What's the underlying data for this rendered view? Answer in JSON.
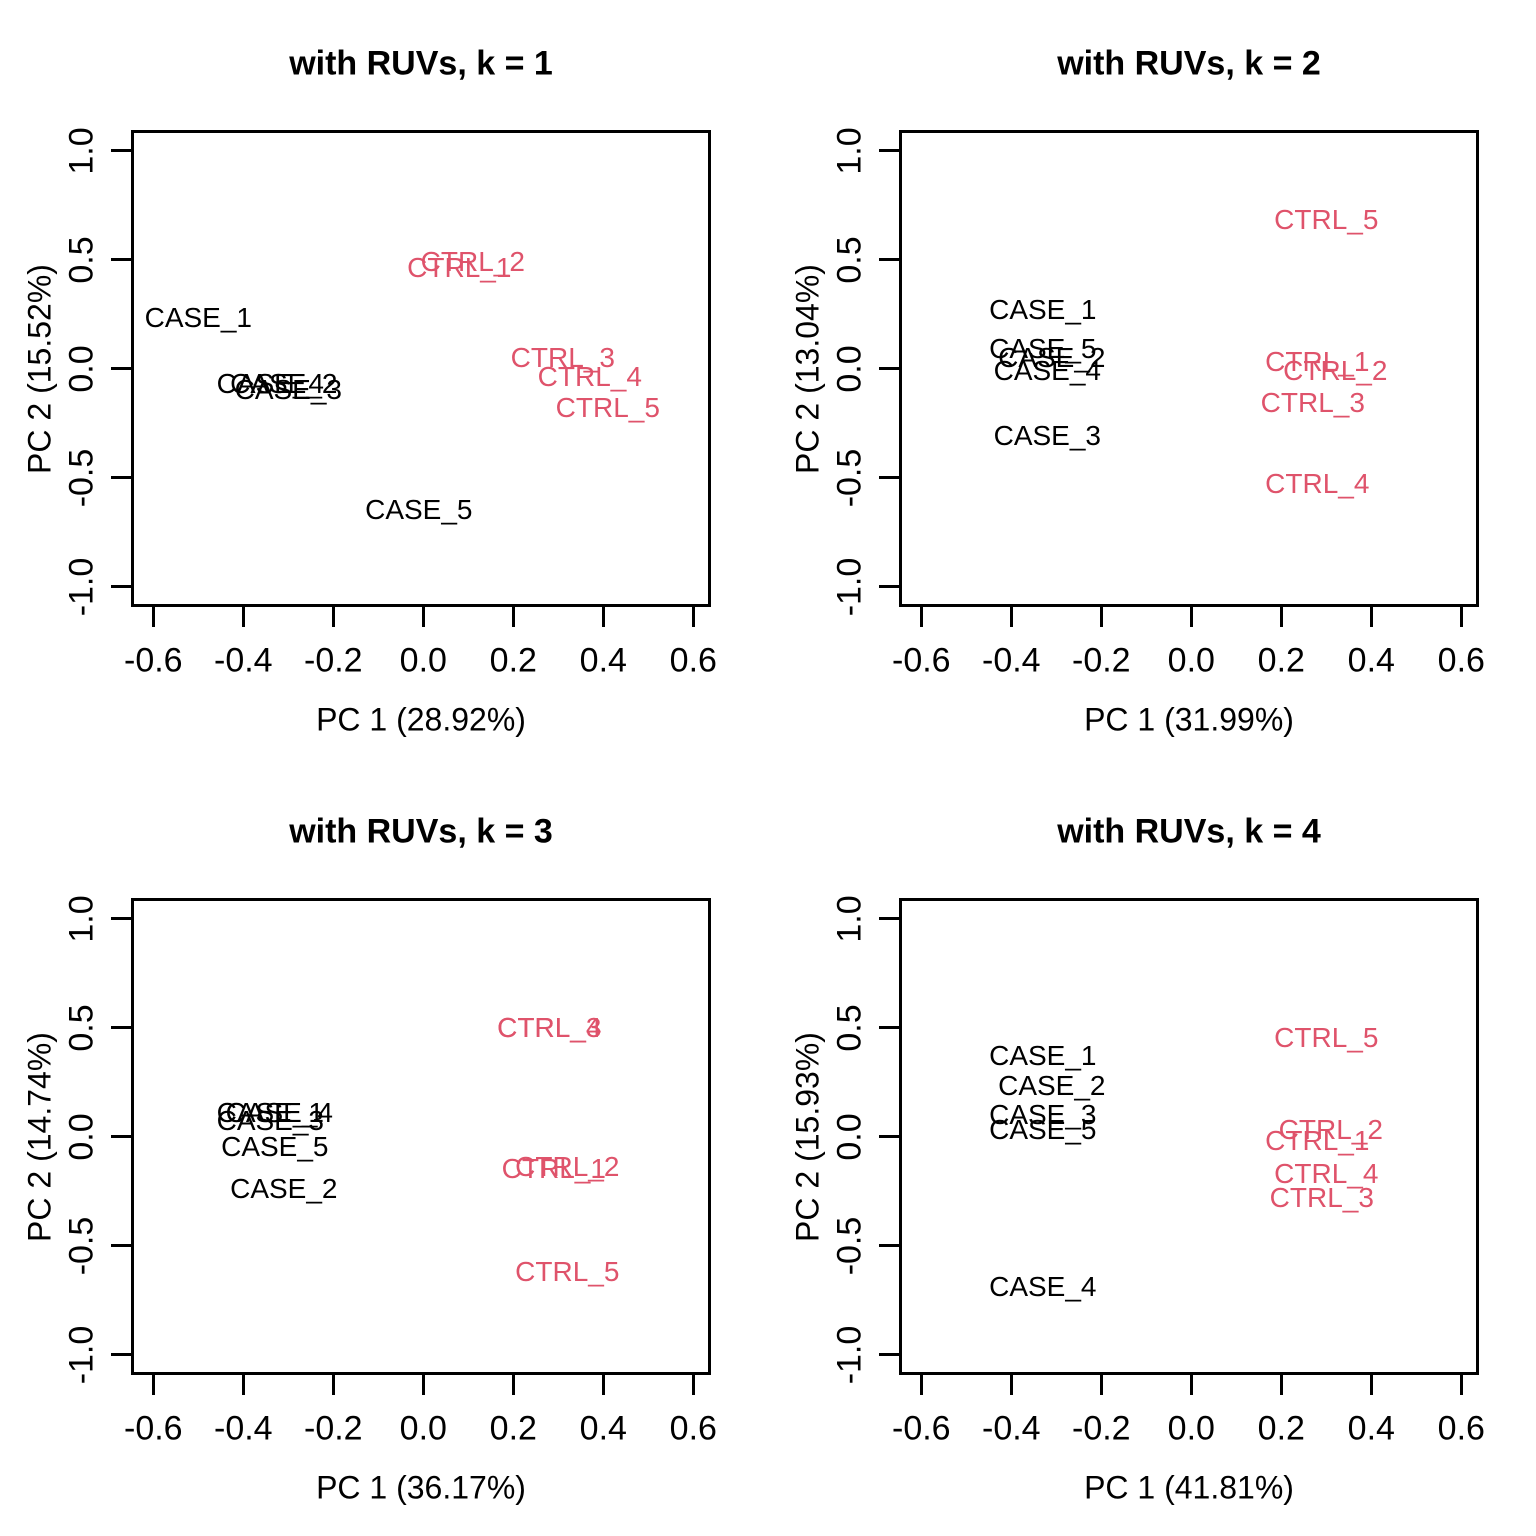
{
  "style": {
    "background": "#ffffff",
    "axis_color": "#000000",
    "group_colors": {
      "CASE": "#000000",
      "CTRL": "#df536b"
    }
  },
  "axes_shared": {
    "x_tick_values": [
      -0.6,
      -0.4,
      -0.2,
      0.0,
      0.2,
      0.4,
      0.6
    ],
    "x_tick_labels": [
      "-0.6",
      "-0.4",
      "-0.2",
      "0.0",
      "0.2",
      "0.4",
      "0.6"
    ],
    "y_tick_values": [
      -1.0,
      -0.5,
      0.0,
      0.5,
      1.0
    ],
    "y_tick_labels": [
      "-1.0",
      "-0.5",
      "0.0",
      "0.5",
      "1.0"
    ],
    "xlim": [
      -0.65,
      0.64
    ],
    "ylim": [
      -1.09,
      1.09
    ],
    "grid": false,
    "legend": "none"
  },
  "chart_data": [
    {
      "type": "scatter",
      "id": "k1",
      "title": "with RUVs, k = 1",
      "xlabel": "PC 1 (28.92%)",
      "ylabel": "PC 2 (15.52%)",
      "points": [
        {
          "label": "CASE_1",
          "group": "CASE",
          "x": -0.5,
          "y": 0.23
        },
        {
          "label": "CASE_2",
          "group": "CASE",
          "x": -0.31,
          "y": -0.07
        },
        {
          "label": "CASE_3",
          "group": "CASE",
          "x": -0.3,
          "y": -0.1
        },
        {
          "label": "CASE_4",
          "group": "CASE",
          "x": -0.34,
          "y": -0.07
        },
        {
          "label": "CASE_5",
          "group": "CASE",
          "x": -0.01,
          "y": -0.65
        },
        {
          "label": "CTRL_1",
          "group": "CTRL",
          "x": 0.08,
          "y": 0.46
        },
        {
          "label": "CTRL_2",
          "group": "CTRL",
          "x": 0.11,
          "y": 0.49
        },
        {
          "label": "CTRL_3",
          "group": "CTRL",
          "x": 0.31,
          "y": 0.05
        },
        {
          "label": "CTRL_4",
          "group": "CTRL",
          "x": 0.37,
          "y": -0.04
        },
        {
          "label": "CTRL_5",
          "group": "CTRL",
          "x": 0.41,
          "y": -0.18
        }
      ]
    },
    {
      "type": "scatter",
      "id": "k2",
      "title": "with RUVs, k = 2",
      "xlabel": "PC 1 (31.99%)",
      "ylabel": "PC 2 (13.04%)",
      "points": [
        {
          "label": "CASE_1",
          "group": "CASE",
          "x": -0.33,
          "y": 0.27
        },
        {
          "label": "CASE_2",
          "group": "CASE",
          "x": -0.31,
          "y": 0.05
        },
        {
          "label": "CASE_3",
          "group": "CASE",
          "x": -0.32,
          "y": -0.31
        },
        {
          "label": "CASE_4",
          "group": "CASE",
          "x": -0.32,
          "y": -0.01
        },
        {
          "label": "CASE_5",
          "group": "CASE",
          "x": -0.33,
          "y": 0.09
        },
        {
          "label": "CTRL_1",
          "group": "CTRL",
          "x": 0.28,
          "y": 0.03
        },
        {
          "label": "CTRL_2",
          "group": "CTRL",
          "x": 0.32,
          "y": -0.01
        },
        {
          "label": "CTRL_3",
          "group": "CTRL",
          "x": 0.27,
          "y": -0.16
        },
        {
          "label": "CTRL_4",
          "group": "CTRL",
          "x": 0.28,
          "y": -0.53
        },
        {
          "label": "CTRL_5",
          "group": "CTRL",
          "x": 0.3,
          "y": 0.68
        }
      ]
    },
    {
      "type": "scatter",
      "id": "k3",
      "title": "with RUVs, k = 3",
      "xlabel": "PC 1 (36.17%)",
      "ylabel": "PC 2 (14.74%)",
      "points": [
        {
          "label": "CASE_1",
          "group": "CASE",
          "x": -0.34,
          "y": 0.11
        },
        {
          "label": "CASE_2",
          "group": "CASE",
          "x": -0.31,
          "y": -0.24
        },
        {
          "label": "CASE_3",
          "group": "CASE",
          "x": -0.34,
          "y": 0.07
        },
        {
          "label": "CASE_4",
          "group": "CASE",
          "x": -0.32,
          "y": 0.11
        },
        {
          "label": "CASE_5",
          "group": "CASE",
          "x": -0.33,
          "y": -0.05
        },
        {
          "label": "CTRL_1",
          "group": "CTRL",
          "x": 0.29,
          "y": -0.15
        },
        {
          "label": "CTRL_2",
          "group": "CTRL",
          "x": 0.32,
          "y": -0.14
        },
        {
          "label": "CTRL_3",
          "group": "CTRL",
          "x": 0.28,
          "y": 0.5
        },
        {
          "label": "CTRL_4",
          "group": "CTRL",
          "x": 0.28,
          "y": 0.5
        },
        {
          "label": "CTRL_5",
          "group": "CTRL",
          "x": 0.32,
          "y": -0.62
        }
      ]
    },
    {
      "type": "scatter",
      "id": "k4",
      "title": "with RUVs, k = 4",
      "xlabel": "PC 1 (41.81%)",
      "ylabel": "PC 2 (15.93%)",
      "points": [
        {
          "label": "CASE_1",
          "group": "CASE",
          "x": -0.33,
          "y": 0.37
        },
        {
          "label": "CASE_2",
          "group": "CASE",
          "x": -0.31,
          "y": 0.23
        },
        {
          "label": "CASE_3",
          "group": "CASE",
          "x": -0.33,
          "y": 0.1
        },
        {
          "label": "CASE_4",
          "group": "CASE",
          "x": -0.33,
          "y": -0.69
        },
        {
          "label": "CASE_5",
          "group": "CASE",
          "x": -0.33,
          "y": 0.03
        },
        {
          "label": "CTRL_1",
          "group": "CTRL",
          "x": 0.28,
          "y": -0.02
        },
        {
          "label": "CTRL_2",
          "group": "CTRL",
          "x": 0.31,
          "y": 0.03
        },
        {
          "label": "CTRL_3",
          "group": "CTRL",
          "x": 0.29,
          "y": -0.28
        },
        {
          "label": "CTRL_4",
          "group": "CTRL",
          "x": 0.3,
          "y": -0.17
        },
        {
          "label": "CTRL_5",
          "group": "CTRL",
          "x": 0.3,
          "y": 0.45
        }
      ]
    }
  ]
}
